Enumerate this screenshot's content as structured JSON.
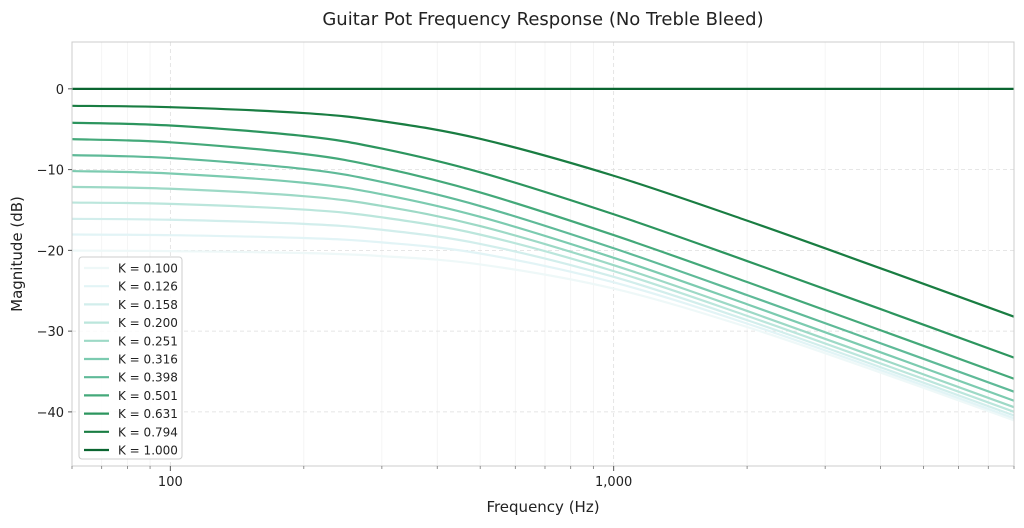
{
  "chart_data": {
    "type": "line",
    "title": "Guitar Pot Frequency Response (No Treble Bleed)",
    "xlabel": "Frequency (Hz)",
    "ylabel": "Magnitude (dB)",
    "xscale": "log",
    "xlim": [
      60,
      8000
    ],
    "ylim": [
      -46.7,
      5.8
    ],
    "grid": true,
    "legend_position": "lower-left",
    "x_ticks": [
      {
        "value": 100,
        "label": "100"
      },
      {
        "value": 1000,
        "label": "1,000"
      }
    ],
    "y_ticks": [
      {
        "value": 0,
        "label": "0"
      },
      {
        "value": -10,
        "label": "−10"
      },
      {
        "value": -20,
        "label": "−20"
      },
      {
        "value": -30,
        "label": "−30"
      },
      {
        "value": -40,
        "label": "−40"
      }
    ],
    "x": [
      60,
      100,
      200,
      300,
      500,
      1000,
      2000,
      4000,
      8000
    ],
    "series": [
      {
        "name": "K = 0.100",
        "color": "#eef8f8",
        "values": [
          -20.03,
          -20.09,
          -20.33,
          -20.71,
          -21.74,
          -24.73,
          -29.49,
          -35.13,
          -41.05
        ]
      },
      {
        "name": "K = 0.126",
        "color": "#e2f4f6",
        "values": [
          -18.04,
          -18.12,
          -18.47,
          -19.01,
          -20.39,
          -23.96,
          -29.07,
          -34.82,
          -40.78
        ]
      },
      {
        "name": "K = 0.158",
        "color": "#d2eeec",
        "values": [
          -16.1,
          -16.21,
          -16.72,
          -17.45,
          -19.2,
          -23.28,
          -28.64,
          -34.47,
          -40.45
        ]
      },
      {
        "name": "K = 0.200",
        "color": "#bbe6dc",
        "values": [
          -14.08,
          -14.24,
          -14.95,
          -15.91,
          -18.05,
          -22.57,
          -28.11,
          -34.0,
          -39.99
        ]
      },
      {
        "name": "K = 0.251",
        "color": "#9dd9c6",
        "values": [
          -12.14,
          -12.37,
          -13.29,
          -14.5,
          -16.99,
          -21.83,
          -27.5,
          -33.43,
          -39.42
        ]
      },
      {
        "name": "K = 0.316",
        "color": "#7ccbb0",
        "values": [
          -10.18,
          -10.48,
          -11.63,
          -13.06,
          -15.85,
          -20.92,
          -26.67,
          -32.62,
          -38.62
        ]
      },
      {
        "name": "K = 0.398",
        "color": "#5fba98",
        "values": [
          -8.21,
          -8.57,
          -9.92,
          -11.53,
          -14.51,
          -19.74,
          -25.54,
          -31.5,
          -37.5
        ]
      },
      {
        "name": "K = 0.501",
        "color": "#44a97a",
        "values": [
          -6.23,
          -6.62,
          -8.07,
          -9.75,
          -12.83,
          -18.11,
          -23.92,
          -29.89,
          -35.9
        ]
      },
      {
        "name": "K = 0.631",
        "color": "#2c955e",
        "values": [
          -4.2,
          -4.54,
          -5.84,
          -7.4,
          -10.34,
          -15.53,
          -21.32,
          -27.27,
          -33.28
        ]
      },
      {
        "name": "K = 0.794",
        "color": "#197d42",
        "values": [
          -2.1,
          -2.27,
          -3.0,
          -4.0,
          -6.19,
          -10.76,
          -16.32,
          -22.22,
          -28.21
        ]
      },
      {
        "name": "K = 1.000",
        "color": "#0a6530",
        "values": [
          0,
          0,
          0,
          0,
          0,
          0,
          0,
          0,
          0
        ]
      }
    ]
  }
}
